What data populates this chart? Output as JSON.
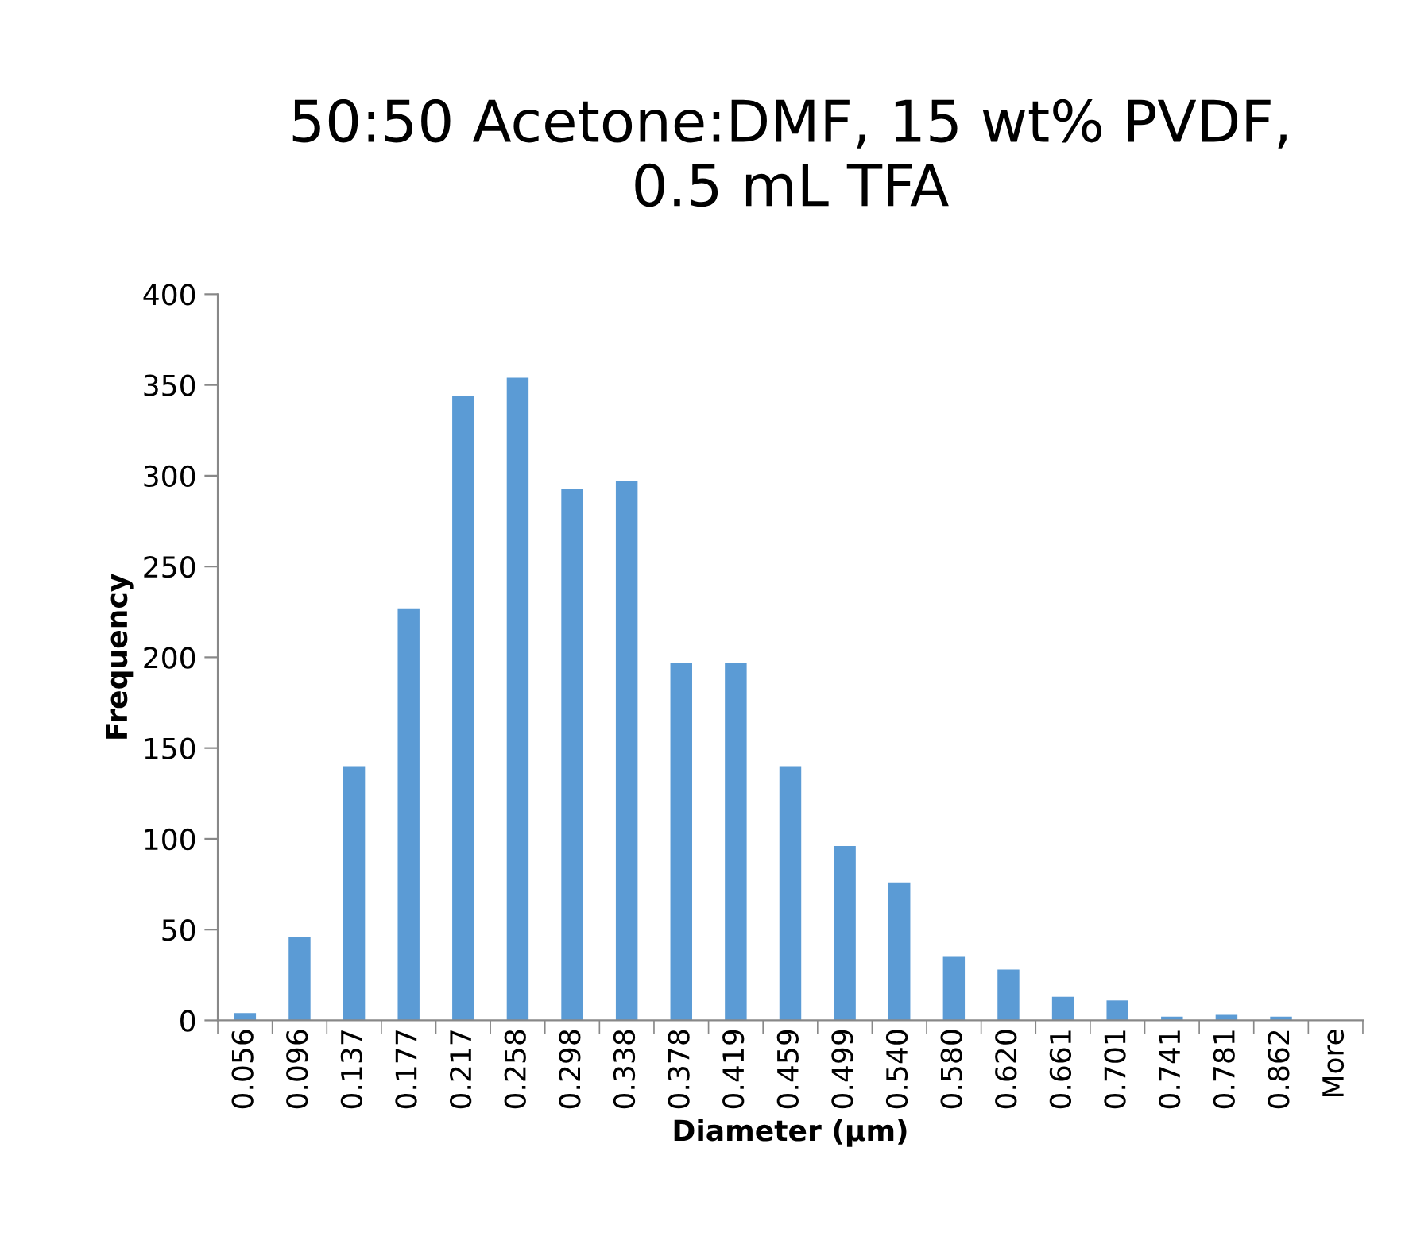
{
  "chart_data": {
    "type": "bar",
    "title": "50:50 Acetone:DMF, 15 wt% PVDF,\n0.5 mL TFA",
    "xlabel": "Diameter (µm)",
    "ylabel": "Frequency",
    "categories": [
      "0.056",
      "0.096",
      "0.137",
      "0.177",
      "0.217",
      "0.258",
      "0.298",
      "0.338",
      "0.378",
      "0.419",
      "0.459",
      "0.499",
      "0.540",
      "0.580",
      "0.620",
      "0.661",
      "0.701",
      "0.741",
      "0.781",
      "0.862",
      "More"
    ],
    "values": [
      4,
      46,
      140,
      227,
      344,
      354,
      293,
      297,
      197,
      197,
      140,
      96,
      76,
      35,
      28,
      13,
      11,
      2,
      3,
      2,
      0
    ],
    "color": "#5b9bd5",
    "ylim": [
      0,
      400
    ],
    "yticks": [
      0,
      50,
      100,
      150,
      200,
      250,
      300,
      350,
      400
    ],
    "grid": false,
    "legend": false
  }
}
